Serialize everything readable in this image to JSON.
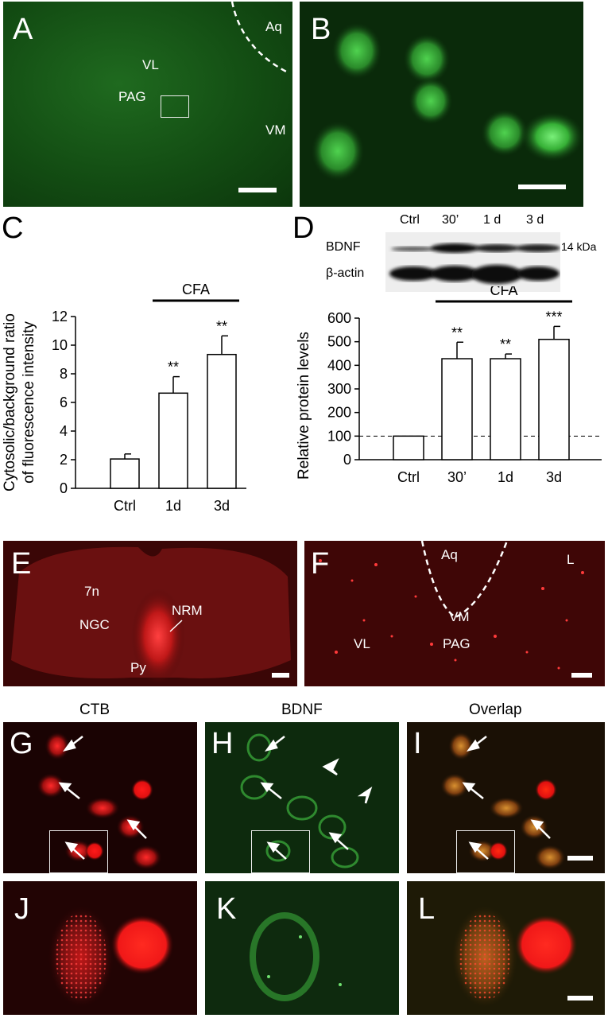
{
  "panels": {
    "A": {
      "letter": "A",
      "labels": {
        "aq": "Aq",
        "vl": "VL",
        "pag": "PAG",
        "vm": "VM"
      }
    },
    "B": {
      "letter": "B"
    },
    "C": {
      "letter": "C"
    },
    "D": {
      "letter": "D"
    },
    "E": {
      "letter": "E",
      "labels": {
        "n7": "7n",
        "ngc": "NGC",
        "nrm": "NRM",
        "py": "Py"
      }
    },
    "F": {
      "letter": "F",
      "labels": {
        "aq": "Aq",
        "l": "L",
        "vm": "VM",
        "vl": "VL",
        "pag": "PAG"
      }
    },
    "G": {
      "letter": "G"
    },
    "H": {
      "letter": "H"
    },
    "I": {
      "letter": "I"
    },
    "J": {
      "letter": "J"
    },
    "K": {
      "letter": "K"
    },
    "L": {
      "letter": "L"
    }
  },
  "column_titles": {
    "ctb": "CTB",
    "bdnf": "BDNF",
    "overlap": "Overlap"
  },
  "western": {
    "lanes": [
      "Ctrl",
      "30’",
      "1 d",
      "3 d"
    ],
    "rows": [
      "BDNF",
      "β-actin"
    ],
    "size": "14 kDa"
  },
  "chart_data": [
    {
      "type": "bar",
      "categories": [
        "Ctrl",
        "1d",
        "3d"
      ],
      "values": [
        2.05,
        6.65,
        9.35
      ],
      "errors": [
        0.35,
        1.15,
        1.3
      ],
      "significance": [
        "",
        "**",
        "**"
      ],
      "treatment_bar": "CFA",
      "ylabel_line1": "Cytosolic/background ratio",
      "ylabel_line2": "of fluorescence intensity",
      "yticks": [
        "0",
        "2",
        "4",
        "6",
        "8",
        "10",
        "12"
      ],
      "ylim": [
        0,
        12
      ]
    },
    {
      "type": "bar",
      "categories": [
        "Ctrl",
        "30’",
        "1d",
        "3d"
      ],
      "values": [
        100,
        428,
        428,
        510
      ],
      "errors": [
        0,
        70,
        20,
        55
      ],
      "significance": [
        "",
        "**",
        "**",
        "***"
      ],
      "treatment_bar": "CFA",
      "ylabel": "Relative protein levels",
      "yticks": [
        "0",
        "100",
        "200",
        "300",
        "400",
        "500",
        "600"
      ],
      "ylim": [
        0,
        600
      ],
      "reference_line": 100
    }
  ]
}
